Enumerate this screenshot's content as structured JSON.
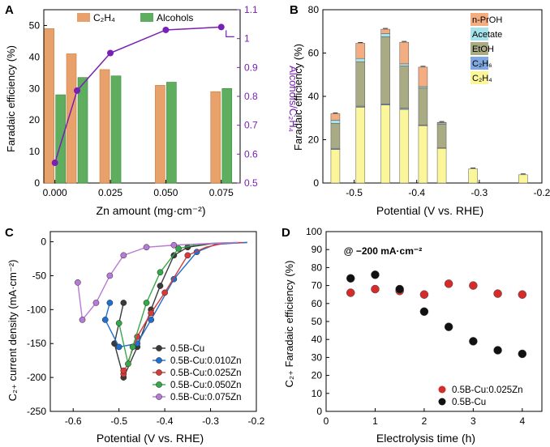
{
  "chart_data": [
    {
      "panel": "A",
      "type": "bar",
      "x": [
        0.0,
        0.01,
        0.025,
        0.05,
        0.075
      ],
      "xticks": [
        "0.000",
        "0.025",
        "0.050",
        "0.075"
      ],
      "xlabel": "Zn amount (mg·cm⁻²)",
      "ylabel": "Faradaic efficiency (%)",
      "ylim": [
        0,
        55
      ],
      "yticks": [
        0,
        10,
        20,
        30,
        40,
        50
      ],
      "y2label": "Alcohols/C₂H₄",
      "y2lim": [
        0.5,
        1.1
      ],
      "y2ticks": [
        0.5,
        0.6,
        0.7,
        0.8,
        0.9,
        1.0,
        1.1
      ],
      "series": [
        {
          "name": "C₂H₄",
          "color": "#e8a16a",
          "values": [
            49,
            41,
            36,
            31,
            29
          ]
        },
        {
          "name": "Alcohols",
          "color": "#5fae5f",
          "values": [
            28,
            33.5,
            34,
            32,
            30
          ]
        },
        {
          "name": "ratio",
          "axis": "right",
          "color": "#7a1fb5",
          "values": [
            0.57,
            0.82,
            0.95,
            1.03,
            1.04
          ]
        }
      ],
      "legend": "top"
    },
    {
      "panel": "B",
      "type": "bar",
      "stacked": true,
      "x": [
        -0.53,
        -0.49,
        -0.45,
        -0.42,
        -0.39,
        -0.36,
        -0.31,
        -0.23
      ],
      "xticks": [
        "-0.5",
        "-0.4",
        "-0.3",
        "-0.2"
      ],
      "xlabel": "Potential (V vs. RHE)",
      "ylabel": "Faradaic efficiency (%)",
      "ylim": [
        0,
        80
      ],
      "yticks": [
        0,
        20,
        40,
        60,
        80
      ],
      "series": [
        {
          "name": "C₂H₄",
          "color": "#fbf69a",
          "values": [
            15.5,
            35,
            36,
            34,
            26.5,
            16,
            6.5,
            3.8
          ]
        },
        {
          "name": "C₂H₆",
          "color": "#7fa7e0",
          "values": [
            0.5,
            0.5,
            0.5,
            0.5,
            0.3,
            0.2,
            0,
            0
          ]
        },
        {
          "name": "EtOH",
          "color": "#a9ab84",
          "values": [
            11.5,
            20.5,
            31,
            19.5,
            17,
            11,
            0,
            0
          ]
        },
        {
          "name": "Acetate",
          "color": "#a6e3ea",
          "values": [
            1.5,
            1.5,
            1.5,
            1,
            0.7,
            0.5,
            0,
            0
          ]
        },
        {
          "name": "n-PrOH",
          "color": "#f4ad80",
          "values": [
            3,
            7,
            2,
            10,
            9,
            0.3,
            0,
            0
          ]
        }
      ],
      "legend": "top-right"
    },
    {
      "panel": "C",
      "type": "line",
      "xlabel": "Potential (V vs. RHE)",
      "ylabel": "C₂₊ current density (mA·cm⁻²)",
      "xlim": [
        -0.65,
        -0.2
      ],
      "xticks": [
        -0.6,
        -0.5,
        -0.4,
        -0.3,
        -0.2
      ],
      "ylim": [
        -250,
        15
      ],
      "yticks": [
        -250,
        -200,
        -150,
        -100,
        -50,
        0
      ],
      "series": [
        {
          "name": "0.5B-Cu",
          "color": "#3a3a3a",
          "x": [
            -0.22,
            -0.26,
            -0.3,
            -0.35,
            -0.38,
            -0.41,
            -0.43,
            -0.46,
            -0.49,
            -0.51,
            -0.49
          ],
          "y": [
            -1,
            -2,
            -3,
            -8,
            -20,
            -65,
            -100,
            -155,
            -200,
            -150,
            -90
          ]
        },
        {
          "name": "0.5B-Cu:0.010Zn",
          "color": "#1f6fd1",
          "x": [
            -0.22,
            -0.25,
            -0.29,
            -0.33,
            -0.38,
            -0.43,
            -0.46,
            -0.5,
            -0.53,
            -0.52
          ],
          "y": [
            -1,
            -2,
            -4,
            -15,
            -55,
            -115,
            -150,
            -155,
            -115,
            -90
          ]
        },
        {
          "name": "0.5B-Cu:0.025Zn",
          "color": "#d83a3a",
          "x": [
            -0.23,
            -0.27,
            -0.31,
            -0.35,
            -0.4,
            -0.43,
            -0.46,
            -0.49,
            -0.49
          ],
          "y": [
            -1,
            -2,
            -8,
            -20,
            -75,
            -105,
            -140,
            -195,
            -190
          ]
        },
        {
          "name": "0.5B-Cu:0.050Zn",
          "color": "#35a84a",
          "x": [
            -0.24,
            -0.29,
            -0.33,
            -0.37,
            -0.41,
            -0.44,
            -0.47,
            -0.48,
            -0.5
          ],
          "y": [
            -1,
            -2,
            -4,
            -10,
            -45,
            -90,
            -155,
            -180,
            -120
          ]
        },
        {
          "name": "0.5B-Cu:0.075Zn",
          "color": "#b77ad6",
          "x": [
            -0.24,
            -0.28,
            -0.32,
            -0.38,
            -0.44,
            -0.49,
            -0.52,
            -0.55,
            -0.58,
            -0.59
          ],
          "y": [
            -1,
            -2,
            -3,
            -5,
            -8,
            -20,
            -50,
            -90,
            -115,
            -60
          ]
        }
      ],
      "legend": "bottom-right"
    },
    {
      "panel": "D",
      "type": "scatter",
      "annotation": "@ −200 mA·cm⁻²",
      "xlabel": "Electrolysis time (h)",
      "ylabel": "C₂₊ Faradaic efficiency (%)",
      "xlim": [
        0,
        4.4
      ],
      "xticks": [
        0,
        1,
        2,
        3,
        4
      ],
      "ylim": [
        0,
        100
      ],
      "yticks": [
        0,
        10,
        20,
        30,
        40,
        50,
        60,
        70,
        80,
        90,
        100
      ],
      "series": [
        {
          "name": "0.5B-Cu:0.025Zn",
          "color": "#d42b2b",
          "x": [
            0.5,
            1,
            1.5,
            2,
            2.5,
            3,
            3.5,
            4
          ],
          "y": [
            66,
            68,
            67,
            65,
            71,
            70,
            65.5,
            65
          ]
        },
        {
          "name": "0.5B-Cu",
          "color": "#111111",
          "x": [
            0.5,
            1,
            1.5,
            2,
            2.5,
            3,
            3.5,
            4
          ],
          "y": [
            74,
            76,
            68,
            55.5,
            47,
            39,
            34,
            32
          ]
        }
      ],
      "legend": "bottom-right"
    }
  ]
}
